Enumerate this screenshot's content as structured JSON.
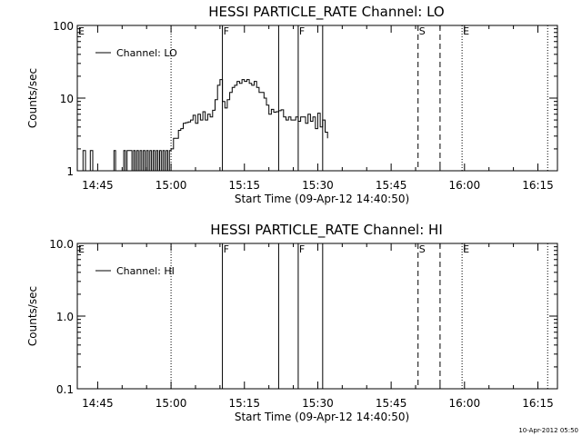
{
  "footer_timestamp": "10-Apr-2012 05:50",
  "chart_data": [
    {
      "type": "line",
      "title": "HESSI PARTICLE_RATE Channel: LO",
      "xlabel": "Start Time (09-Apr-12 14:40:50)",
      "ylabel": "Counts/sec",
      "y_scale": "log",
      "ylim": [
        1,
        100
      ],
      "y_ticks": [
        {
          "value": 1,
          "label": "1"
        },
        {
          "value": 10,
          "label": "10"
        },
        {
          "value": 100,
          "label": "100"
        }
      ],
      "x_range_min": [
        "14:40:50",
        "16:19:00"
      ],
      "x_ticks": [
        "14:45",
        "15:00",
        "15:15",
        "15:30",
        "15:45",
        "16:00",
        "16:15"
      ],
      "legend": {
        "label": "Channel: LO",
        "position": "top-left"
      },
      "vlines": [
        {
          "time": "14:40:50",
          "style": "dotted",
          "label": "E"
        },
        {
          "time": "15:00:00",
          "style": "dotted",
          "label": ""
        },
        {
          "time": "15:10:30",
          "style": "solid",
          "label": "F"
        },
        {
          "time": "15:22:00",
          "style": "solid",
          "label": ""
        },
        {
          "time": "15:26:00",
          "style": "solid",
          "label": "F"
        },
        {
          "time": "15:31:00",
          "style": "solid",
          "label": ""
        },
        {
          "time": "15:50:30",
          "style": "dashed",
          "label": "S"
        },
        {
          "time": "15:55:00",
          "style": "dashed",
          "label": ""
        },
        {
          "time": "15:59:30",
          "style": "dotted",
          "label": "E"
        },
        {
          "time": "16:17:00",
          "style": "dotted",
          "label": ""
        }
      ],
      "series": [
        {
          "name": "Channel: LO",
          "x": [
            "14:41:30",
            "14:42:00",
            "14:42:30",
            "14:43:00",
            "14:43:30",
            "14:44:00",
            "14:48:00",
            "14:48:20",
            "14:48:40",
            "14:49:00",
            "14:50:00",
            "14:50:20",
            "14:50:40",
            "14:51:00",
            "14:52:00",
            "14:52:20",
            "14:52:40",
            "14:53:00",
            "14:53:20",
            "14:53:40",
            "14:54:00",
            "14:54:20",
            "14:54:40",
            "14:55:00",
            "14:55:20",
            "14:55:40",
            "14:56:00",
            "14:56:20",
            "14:56:40",
            "14:57:00",
            "14:57:20",
            "14:57:40",
            "14:58:00",
            "14:58:20",
            "14:58:40",
            "14:59:00",
            "14:59:20",
            "14:59:40",
            "15:00:00",
            "15:00:30",
            "15:01:00",
            "15:01:30",
            "15:02:00",
            "15:02:30",
            "15:03:00",
            "15:03:30",
            "15:04:00",
            "15:04:30",
            "15:05:00",
            "15:05:30",
            "15:06:00",
            "15:06:30",
            "15:07:00",
            "15:07:30",
            "15:08:00",
            "15:08:30",
            "15:09:00",
            "15:09:30",
            "15:10:00",
            "15:10:30",
            "15:11:00",
            "15:11:30",
            "15:12:00",
            "15:12:30",
            "15:13:00",
            "15:13:30",
            "15:14:00",
            "15:14:30",
            "15:15:00",
            "15:15:30",
            "15:16:00",
            "15:16:30",
            "15:17:00",
            "15:17:30",
            "15:18:00",
            "15:18:30",
            "15:19:00",
            "15:19:30",
            "15:20:00",
            "15:20:30",
            "15:21:00",
            "15:21:30",
            "15:22:00",
            "15:22:30",
            "15:23:00",
            "15:23:30",
            "15:24:00",
            "15:24:30",
            "15:25:00",
            "15:25:30",
            "15:26:00",
            "15:26:30",
            "15:27:00",
            "15:27:30",
            "15:28:00",
            "15:28:30",
            "15:29:00",
            "15:29:30",
            "15:30:00",
            "15:30:30",
            "15:31:00",
            "15:31:30",
            "15:32:00"
          ],
          "y": [
            1,
            1.9,
            1,
            1,
            1.9,
            1,
            1,
            1.9,
            1,
            1,
            1,
            1.9,
            1,
            1.9,
            1,
            1.9,
            1,
            1.9,
            1,
            1.9,
            1,
            1.9,
            1,
            1.9,
            1,
            1.9,
            1,
            1.9,
            1,
            1.9,
            1,
            1.9,
            1,
            1.9,
            1,
            1.9,
            1,
            1.9,
            2,
            2.8,
            2.8,
            3.6,
            3.8,
            4.5,
            4.6,
            4.7,
            5,
            5.8,
            4.5,
            6,
            5,
            6.5,
            5,
            6,
            5.5,
            6.8,
            9.5,
            15,
            18,
            9,
            7.3,
            9.5,
            12,
            14,
            15,
            17,
            16,
            18,
            17,
            18,
            16,
            15,
            17,
            14,
            12,
            12,
            10,
            8,
            6,
            7,
            6.4,
            6.5,
            6.7,
            6.9,
            5.5,
            5,
            5.5,
            5,
            5,
            5.5,
            4.8,
            5.5,
            5.5,
            4.5,
            6,
            4.8,
            5.5,
            3.8,
            6.2,
            4,
            5,
            3.4,
            2.8
          ]
        }
      ]
    },
    {
      "type": "line",
      "title": "HESSI PARTICLE_RATE Channel: HI",
      "xlabel": "Start Time (09-Apr-12 14:40:50)",
      "ylabel": "Counts/sec",
      "y_scale": "log",
      "ylim": [
        0.1,
        10
      ],
      "y_ticks": [
        {
          "value": 0.1,
          "label": "0.1"
        },
        {
          "value": 1,
          "label": "1.0"
        },
        {
          "value": 10,
          "label": "10.0"
        }
      ],
      "x_range_min": [
        "14:40:50",
        "16:19:00"
      ],
      "x_ticks": [
        "14:45",
        "15:00",
        "15:15",
        "15:30",
        "15:45",
        "16:00",
        "16:15"
      ],
      "legend": {
        "label": "Channel: HI",
        "position": "top-left"
      },
      "vlines": [
        {
          "time": "14:40:50",
          "style": "dotted",
          "label": "E"
        },
        {
          "time": "15:00:00",
          "style": "dotted",
          "label": ""
        },
        {
          "time": "15:10:30",
          "style": "solid",
          "label": "F"
        },
        {
          "time": "15:22:00",
          "style": "solid",
          "label": ""
        },
        {
          "time": "15:26:00",
          "style": "solid",
          "label": "F"
        },
        {
          "time": "15:31:00",
          "style": "solid",
          "label": ""
        },
        {
          "time": "15:50:30",
          "style": "dashed",
          "label": "S"
        },
        {
          "time": "15:55:00",
          "style": "dashed",
          "label": ""
        },
        {
          "time": "15:59:30",
          "style": "dotted",
          "label": "E"
        },
        {
          "time": "16:17:00",
          "style": "dotted",
          "label": ""
        }
      ],
      "series": [
        {
          "name": "Channel: HI",
          "x": [],
          "y": []
        }
      ]
    }
  ]
}
